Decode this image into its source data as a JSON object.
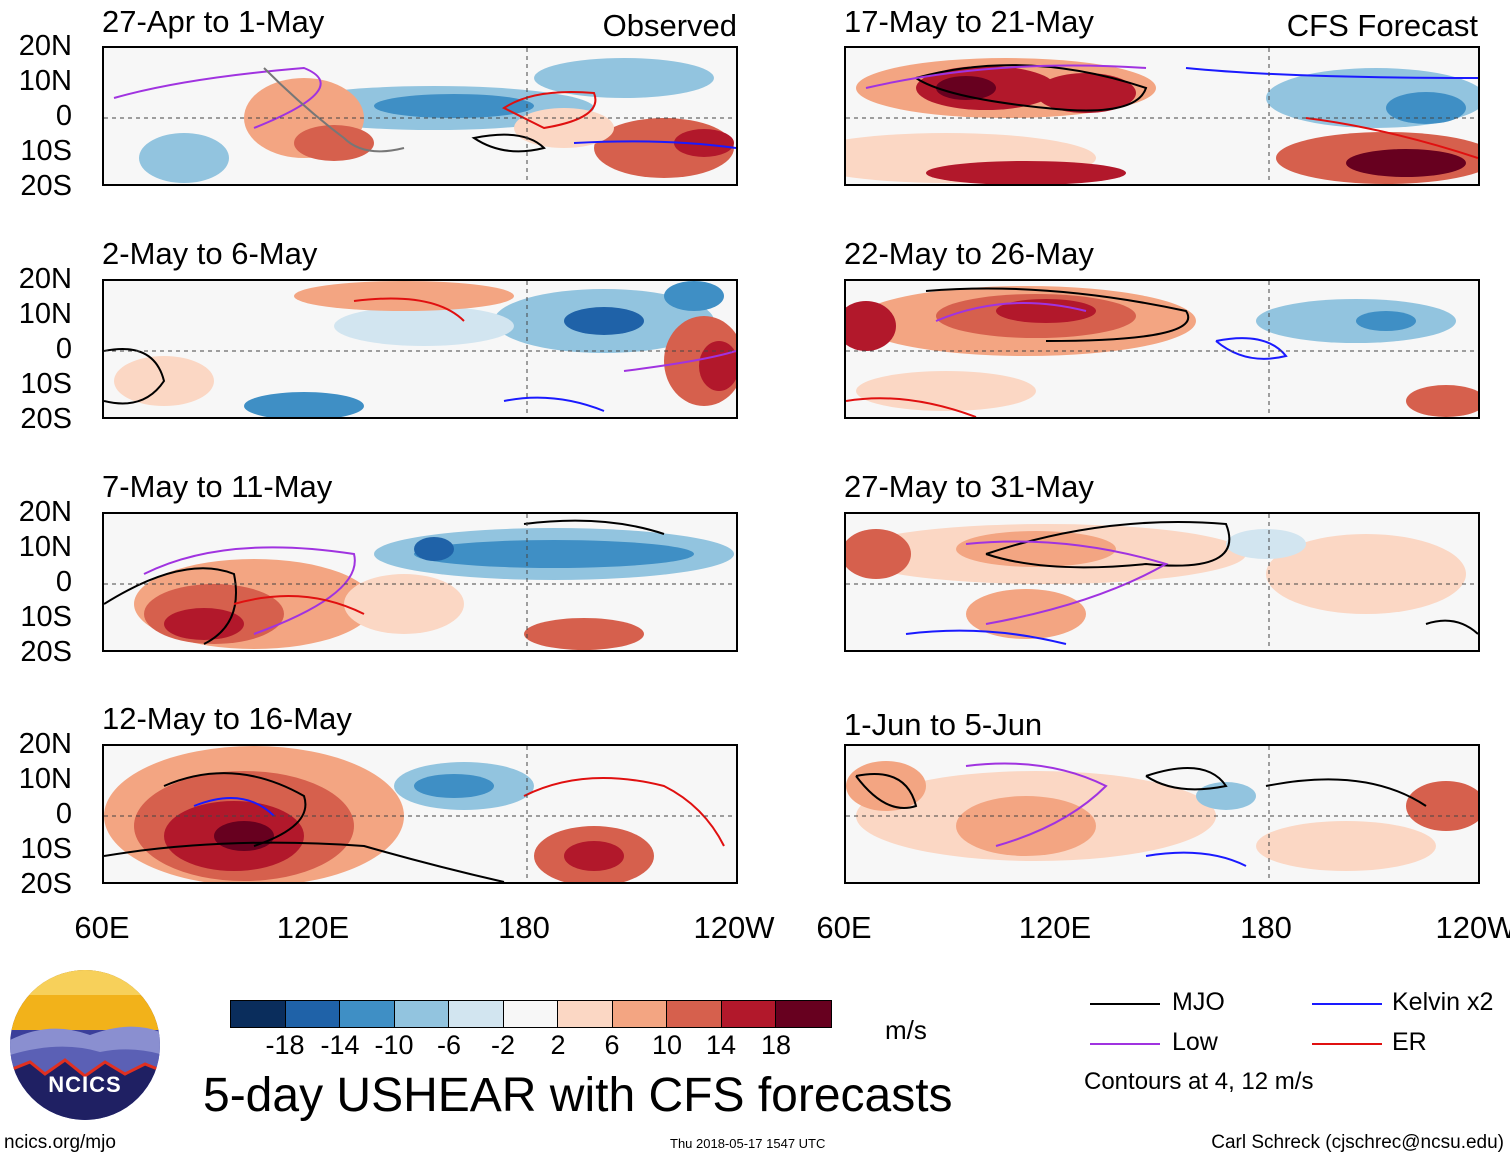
{
  "panels": [
    {
      "title": "27-Apr to 1-May",
      "tag": "Observed",
      "column": "left",
      "row": 0
    },
    {
      "title": "2-May to 6-May",
      "tag": "",
      "column": "left",
      "row": 1
    },
    {
      "title": "7-May to 11-May",
      "tag": "",
      "column": "left",
      "row": 2
    },
    {
      "title": "12-May to 16-May",
      "tag": "",
      "column": "left",
      "row": 3
    },
    {
      "title": "17-May to 21-May",
      "tag": "CFS Forecast",
      "column": "right",
      "row": 0
    },
    {
      "title": "22-May to 26-May",
      "tag": "",
      "column": "right",
      "row": 1
    },
    {
      "title": "27-May to 31-May",
      "tag": "",
      "column": "right",
      "row": 2
    },
    {
      "title": "1-Jun to 5-Jun",
      "tag": "",
      "column": "right",
      "row": 3
    }
  ],
  "lat_labels": [
    "20N",
    "10N",
    "0",
    "10S",
    "20S"
  ],
  "lon_labels": [
    "60E",
    "120E",
    "180",
    "120W"
  ],
  "colorbar": {
    "colors": [
      "#0a2d5c",
      "#1f62a8",
      "#3f8fc5",
      "#92c4df",
      "#d2e5f0",
      "#f7f7f7",
      "#fbd7c4",
      "#f3a582",
      "#d6604d",
      "#b2182b",
      "#67001f"
    ],
    "labels": [
      "-18",
      "-14",
      "-10",
      "-6",
      "-2",
      "2",
      "6",
      "10",
      "14",
      "18"
    ],
    "units": "m/s"
  },
  "legend": {
    "items": [
      {
        "label": "MJO",
        "color": "#000000"
      },
      {
        "label": "Kelvin x2",
        "color": "#1a1aff"
      },
      {
        "label": "Low",
        "color": "#a033e0"
      },
      {
        "label": "ER",
        "color": "#e01010"
      }
    ],
    "note": "Contours at 4, 12 m/s"
  },
  "title": "5-day USHEAR with CFS forecasts",
  "logo_text": "NCICS",
  "footer": {
    "left": "ncics.org/mjo",
    "center": "Thu 2018-05-17 1547 UTC",
    "right": "Carl Schreck (cjschrec@ncsu.edu)"
  }
}
